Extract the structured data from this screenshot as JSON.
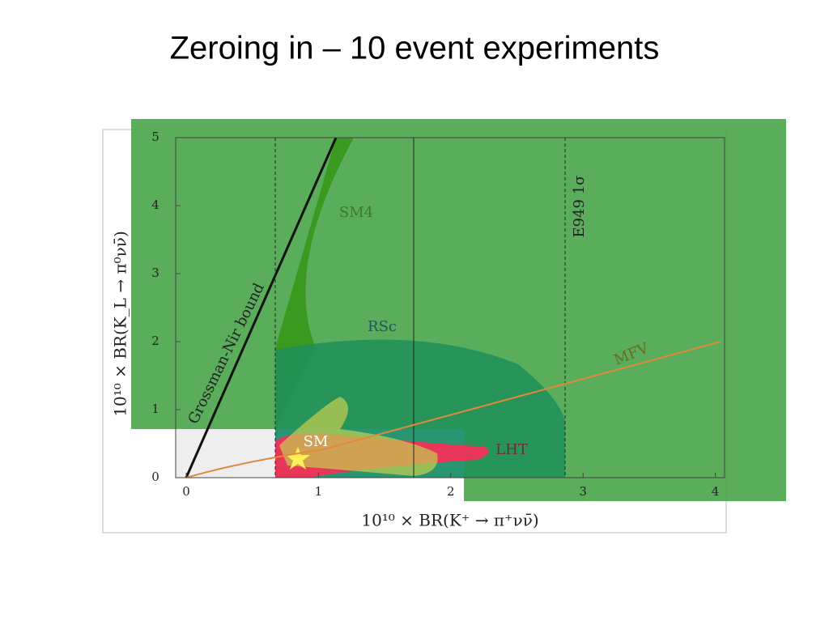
{
  "chart_data": {
    "type": "region",
    "title": "Zeroing in – 10 event experiments",
    "x_label": "10¹⁰ × BR(K⁺ → π⁺νν̄)",
    "y_label": "10¹⁰ × BR(K_L → π⁰νν̄)",
    "xlim": [
      -0.08,
      4.07
    ],
    "ylim": [
      0,
      5
    ],
    "xticks": [
      0,
      1,
      2,
      3,
      4
    ],
    "yticks": [
      0,
      1,
      2,
      3,
      4,
      5
    ],
    "annotations": [
      "SM4",
      "RSc",
      "MFV",
      "LHT",
      "SM",
      "Grossman-Nir bound",
      "E949 1σ"
    ]
  }
}
